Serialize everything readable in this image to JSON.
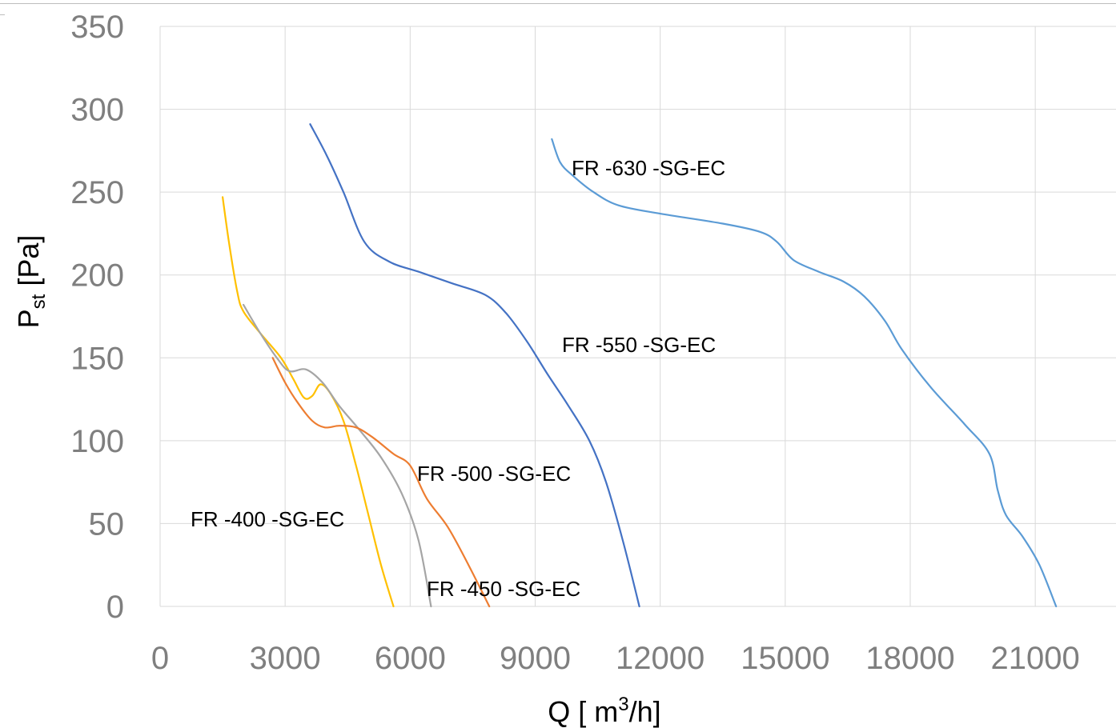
{
  "chart_data": {
    "type": "line",
    "xlabel_prefix": "Q [ m",
    "xlabel_sup": "3",
    "xlabel_suffix": "/h]",
    "ylabel_main": "P",
    "ylabel_sub": "st",
    "ylabel_suffix": " [Pa]",
    "xlim": [
      0,
      23000
    ],
    "ylim": [
      0,
      350
    ],
    "x_ticks": [
      0,
      3000,
      6000,
      9000,
      12000,
      15000,
      18000,
      21000
    ],
    "y_ticks": [
      0,
      50,
      100,
      150,
      200,
      250,
      300,
      350
    ],
    "grid": true,
    "series": [
      {
        "name": "FR-400-SG-EC",
        "label": "FR -400 -SG-EC",
        "color": "#FFC000",
        "x": [
          1500,
          1650,
          1850,
          2000,
          2400,
          2900,
          3200,
          3450,
          3650,
          3850,
          4100,
          4400,
          4700,
          5000,
          5300,
          5600
        ],
        "y": [
          247,
          220,
          190,
          178,
          165,
          150,
          137,
          126,
          127,
          134,
          128,
          112,
          85,
          55,
          25,
          0
        ]
      },
      {
        "name": "FR-450-SG-EC",
        "label": "FR -450 -SG-EC",
        "color": "#A5A5A5",
        "x": [
          2000,
          2400,
          2800,
          3100,
          3500,
          3900,
          4300,
          4800,
          5300,
          5800,
          6200,
          6500
        ],
        "y": [
          182,
          165,
          150,
          142,
          143,
          135,
          121,
          106,
          90,
          68,
          40,
          0
        ]
      },
      {
        "name": "FR-500-SG-EC",
        "label": "FR -500 -SG-EC",
        "color": "#ED7D31",
        "x": [
          2700,
          3000,
          3300,
          3650,
          3950,
          4300,
          4700,
          5100,
          5600,
          6000,
          6400,
          6900,
          7400,
          7900
        ],
        "y": [
          150,
          135,
          123,
          112,
          108,
          109,
          108,
          102,
          92,
          85,
          65,
          48,
          25,
          0
        ]
      },
      {
        "name": "FR-550-SG-EC",
        "label": "FR -550 -SG-EC",
        "color": "#4472C4",
        "x": [
          3600,
          4000,
          4400,
          4900,
          5500,
          6200,
          7000,
          7800,
          8300,
          8800,
          9300,
          9800,
          10300,
          10700,
          11100,
          11500
        ],
        "y": [
          291,
          272,
          250,
          220,
          208,
          202,
          195,
          188,
          177,
          160,
          140,
          121,
          100,
          75,
          40,
          0
        ]
      },
      {
        "name": "FR-630-SG-EC",
        "label": "FR -630 -SG-EC",
        "color": "#5B9BD5",
        "x": [
          9400,
          9600,
          9900,
          10400,
          11000,
          12000,
          13500,
          14400,
          14800,
          15200,
          15800,
          16400,
          16900,
          17400,
          17800,
          18500,
          19300,
          19900,
          20100,
          20300,
          20700,
          21100,
          21500
        ],
        "y": [
          282,
          268,
          260,
          250,
          242,
          237,
          231,
          226,
          220,
          209,
          202,
          196,
          187,
          172,
          155,
          132,
          110,
          92,
          70,
          55,
          42,
          25,
          0
        ]
      }
    ]
  }
}
